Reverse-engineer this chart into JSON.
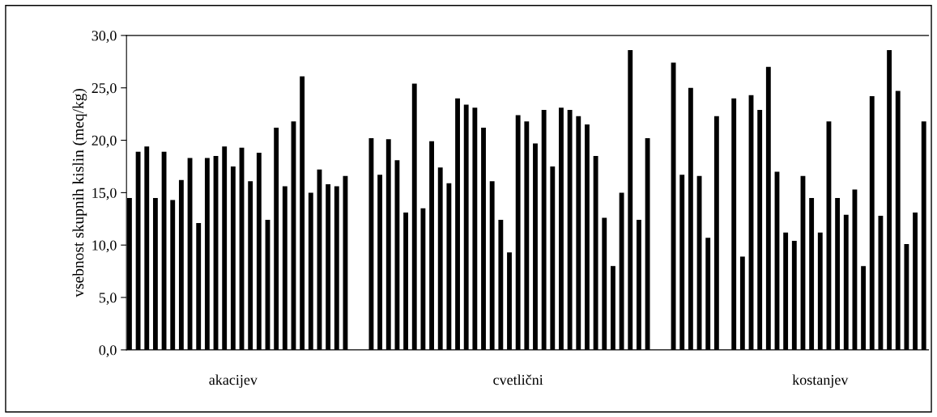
{
  "chart_data": {
    "type": "bar",
    "ylabel": "vsebnost skupnih kislin (meq/kg)",
    "color": "#000000",
    "categories": [
      null,
      null,
      null,
      null,
      null,
      null,
      null,
      null,
      null,
      null,
      null,
      null,
      "akacijev",
      null,
      null,
      null,
      null,
      null,
      null,
      null,
      null,
      null,
      null,
      null,
      null,
      null,
      null,
      null,
      null,
      null,
      null,
      null,
      null,
      null,
      null,
      null,
      null,
      null,
      null,
      null,
      null,
      null,
      null,
      null,
      null,
      "cvetlični",
      null,
      null,
      null,
      null,
      null,
      null,
      null,
      null,
      null,
      null,
      null,
      null,
      null,
      null,
      null,
      null,
      null,
      null,
      null,
      null,
      null,
      null,
      null,
      null,
      null,
      null,
      null,
      null,
      null,
      null,
      null,
      null,
      null,
      null,
      "kostanjev",
      null,
      null,
      null,
      null,
      null,
      null,
      null,
      null,
      null,
      null,
      null,
      null
    ],
    "values": [
      14.5,
      18.9,
      19.4,
      14.5,
      18.9,
      14.3,
      16.2,
      18.3,
      12.1,
      18.3,
      18.5,
      19.4,
      17.5,
      19.3,
      16.1,
      18.8,
      12.4,
      21.2,
      15.6,
      21.8,
      26.1,
      15.0,
      17.2,
      15.8,
      15.6,
      16.6,
      null,
      null,
      20.2,
      16.7,
      20.1,
      18.1,
      13.1,
      25.4,
      13.5,
      19.9,
      17.4,
      15.9,
      24.0,
      23.4,
      23.1,
      21.2,
      16.1,
      12.4,
      9.3,
      22.4,
      21.8,
      19.7,
      22.9,
      17.5,
      23.1,
      22.9,
      22.3,
      21.5,
      18.5,
      12.6,
      8.0,
      15.0,
      28.6,
      12.4,
      20.2,
      null,
      null,
      27.4,
      16.7,
      25.0,
      16.6,
      10.7,
      22.3,
      null,
      24.0,
      8.9,
      24.3,
      22.9,
      27.0,
      17.0,
      11.2,
      10.4,
      16.6,
      14.5,
      11.2,
      21.8,
      14.5,
      12.9,
      15.3,
      8.0,
      24.2,
      12.8,
      28.6,
      24.7,
      10.1,
      13.1,
      21.8
    ],
    "ylim": [
      0,
      30
    ],
    "yticks": [
      {
        "value": 0,
        "label": "0,0"
      },
      {
        "value": 5,
        "label": "5,0"
      },
      {
        "value": 10,
        "label": "10,0"
      },
      {
        "value": 15,
        "label": "15,0"
      },
      {
        "value": 20,
        "label": "20,0"
      },
      {
        "value": 25,
        "label": "25,0"
      },
      {
        "value": 30,
        "label": "30,0"
      }
    ],
    "grid": false,
    "legend": false
  }
}
